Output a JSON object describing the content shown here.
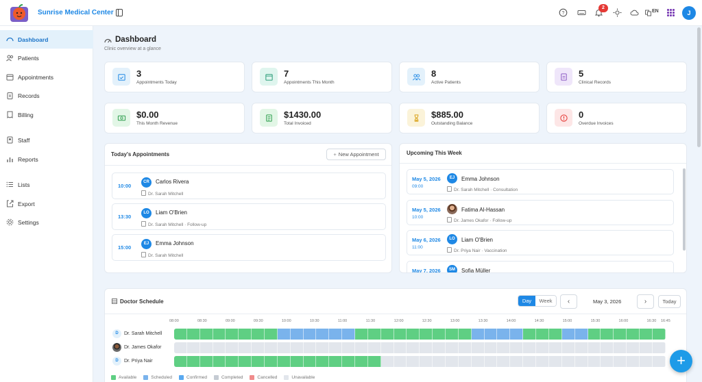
{
  "app": {
    "name": "Sunrise Medical Center",
    "lang": "EN",
    "notifications": "2",
    "user_initial": "J"
  },
  "sidebar": {
    "items": [
      {
        "label": "Dashboard",
        "icon": "gauge-icon"
      },
      {
        "label": "Patients",
        "icon": "users-icon"
      },
      {
        "label": "Appointments",
        "icon": "calendar-icon"
      },
      {
        "label": "Records",
        "icon": "clipboard-icon"
      },
      {
        "label": "Billing",
        "icon": "receipt-icon"
      },
      {
        "label": "Staff",
        "icon": "badge-icon"
      },
      {
        "label": "Reports",
        "icon": "bar-chart-icon"
      },
      {
        "label": "Lists",
        "icon": "list-icon"
      },
      {
        "label": "Export",
        "icon": "export-icon"
      },
      {
        "label": "Settings",
        "icon": "gear-icon"
      }
    ]
  },
  "page": {
    "title": "Dashboard",
    "subtitle": "Clinic overview at a glance"
  },
  "stats": [
    {
      "value": "3",
      "label": "Appointments Today",
      "icon": "calendar-check-icon",
      "color": "#e3f1fb",
      "icolor": "#1e88e5"
    },
    {
      "value": "7",
      "label": "Appointments This Month",
      "icon": "calendar-month-icon",
      "color": "#dff5ee",
      "icolor": "#2e9e7a"
    },
    {
      "value": "8",
      "label": "Active Patients",
      "icon": "users-icon",
      "color": "#e3f1fb",
      "icolor": "#1e88e5"
    },
    {
      "value": "5",
      "label": "Clinical Records",
      "icon": "record-icon",
      "color": "#efe6fa",
      "icolor": "#8e5cc4"
    },
    {
      "value": "$0.00",
      "label": "This Month Revenue",
      "icon": "money-icon",
      "color": "#e2f6e6",
      "icolor": "#2e9e4e"
    },
    {
      "value": "$1430.00",
      "label": "Total Invoiced",
      "icon": "invoice-icon",
      "color": "#e2f6e6",
      "icolor": "#2e9e4e"
    },
    {
      "value": "$885.00",
      "label": "Outstanding Balance",
      "icon": "hourglass-icon",
      "color": "#fbf3d9",
      "icolor": "#d9a21a"
    },
    {
      "value": "0",
      "label": "Overdue Invoices",
      "icon": "alert-icon",
      "color": "#fde6e6",
      "icolor": "#e53935"
    }
  ],
  "today": {
    "title": "Today's Appointments",
    "new_button": "New Appointment",
    "items": [
      {
        "time": "10:00",
        "initials": "CR",
        "name": "Carlos Rivera",
        "detail": "Dr. Sarah Mitchell",
        "photo": false
      },
      {
        "time": "13:30",
        "initials": "LO",
        "name": "Liam O'Brien",
        "detail": "Dr. Sarah Mitchell · Follow-up",
        "photo": false
      },
      {
        "time": "15:00",
        "initials": "EJ",
        "name": "Emma Johnson",
        "detail": "Dr. Sarah Mitchell",
        "photo": false
      }
    ]
  },
  "upcoming": {
    "title": "Upcoming This Week",
    "items": [
      {
        "date": "May 5, 2026",
        "time": "09:00",
        "initials": "EJ",
        "name": "Emma Johnson",
        "detail": "Dr. Sarah Mitchell · Consultation",
        "photo": false
      },
      {
        "date": "May 5, 2026",
        "time": "10:00",
        "initials": "",
        "name": "Fatima Al-Hassan",
        "detail": "Dr. James Okafor · Follow-up",
        "photo": true
      },
      {
        "date": "May 6, 2026",
        "time": "11:00",
        "initials": "LO",
        "name": "Liam O'Brien",
        "detail": "Dr. Priya Nair · Vaccination",
        "photo": false
      },
      {
        "date": "May 7, 2026",
        "time": "",
        "initials": "SM",
        "name": "Sofia Müller",
        "detail": "",
        "photo": false
      }
    ]
  },
  "schedule": {
    "title": "Doctor Schedule",
    "view_day": "Day",
    "view_week": "Week",
    "date": "May 3, 2026",
    "today_button": "Today",
    "ticks": [
      "08:00",
      "08:30",
      "09:00",
      "09:30",
      "10:00",
      "10:30",
      "11:00",
      "11:30",
      "12:00",
      "12:30",
      "13:00",
      "13:30",
      "14:00",
      "14:30",
      "15:00",
      "15:30",
      "16:00",
      "16:30",
      "16:45"
    ],
    "doctors": [
      {
        "initial": "D",
        "name": "Dr. Sarah Mitchell",
        "photo": false,
        "slots": "AAAAAAAASSSSSSAAAAAAAAASSSSAAASSAAAAAA"
      },
      {
        "initial": "",
        "name": "Dr. James Okafor",
        "photo": true,
        "slots": "UUUUUUUUUUUUUUUUUUUUUUUUUUUUUUUUUUUUUU"
      },
      {
        "initial": "D",
        "name": "Dr. Priya Nair",
        "photo": false,
        "slots": "AAAAAAAAAAAAAAAAUUUUUUUUUUUUUUUUUUUUUU"
      }
    ],
    "legend": [
      {
        "label": "Available",
        "color": "#5fcf83"
      },
      {
        "label": "Scheduled",
        "color": "#7ab3ec"
      },
      {
        "label": "Confirmed",
        "color": "#5aa9f0"
      },
      {
        "label": "Completed",
        "color": "#c5cbd3"
      },
      {
        "label": "Cancelled",
        "color": "#f08c8c"
      },
      {
        "label": "Unavailable",
        "color": "#e2e6ec"
      }
    ]
  }
}
